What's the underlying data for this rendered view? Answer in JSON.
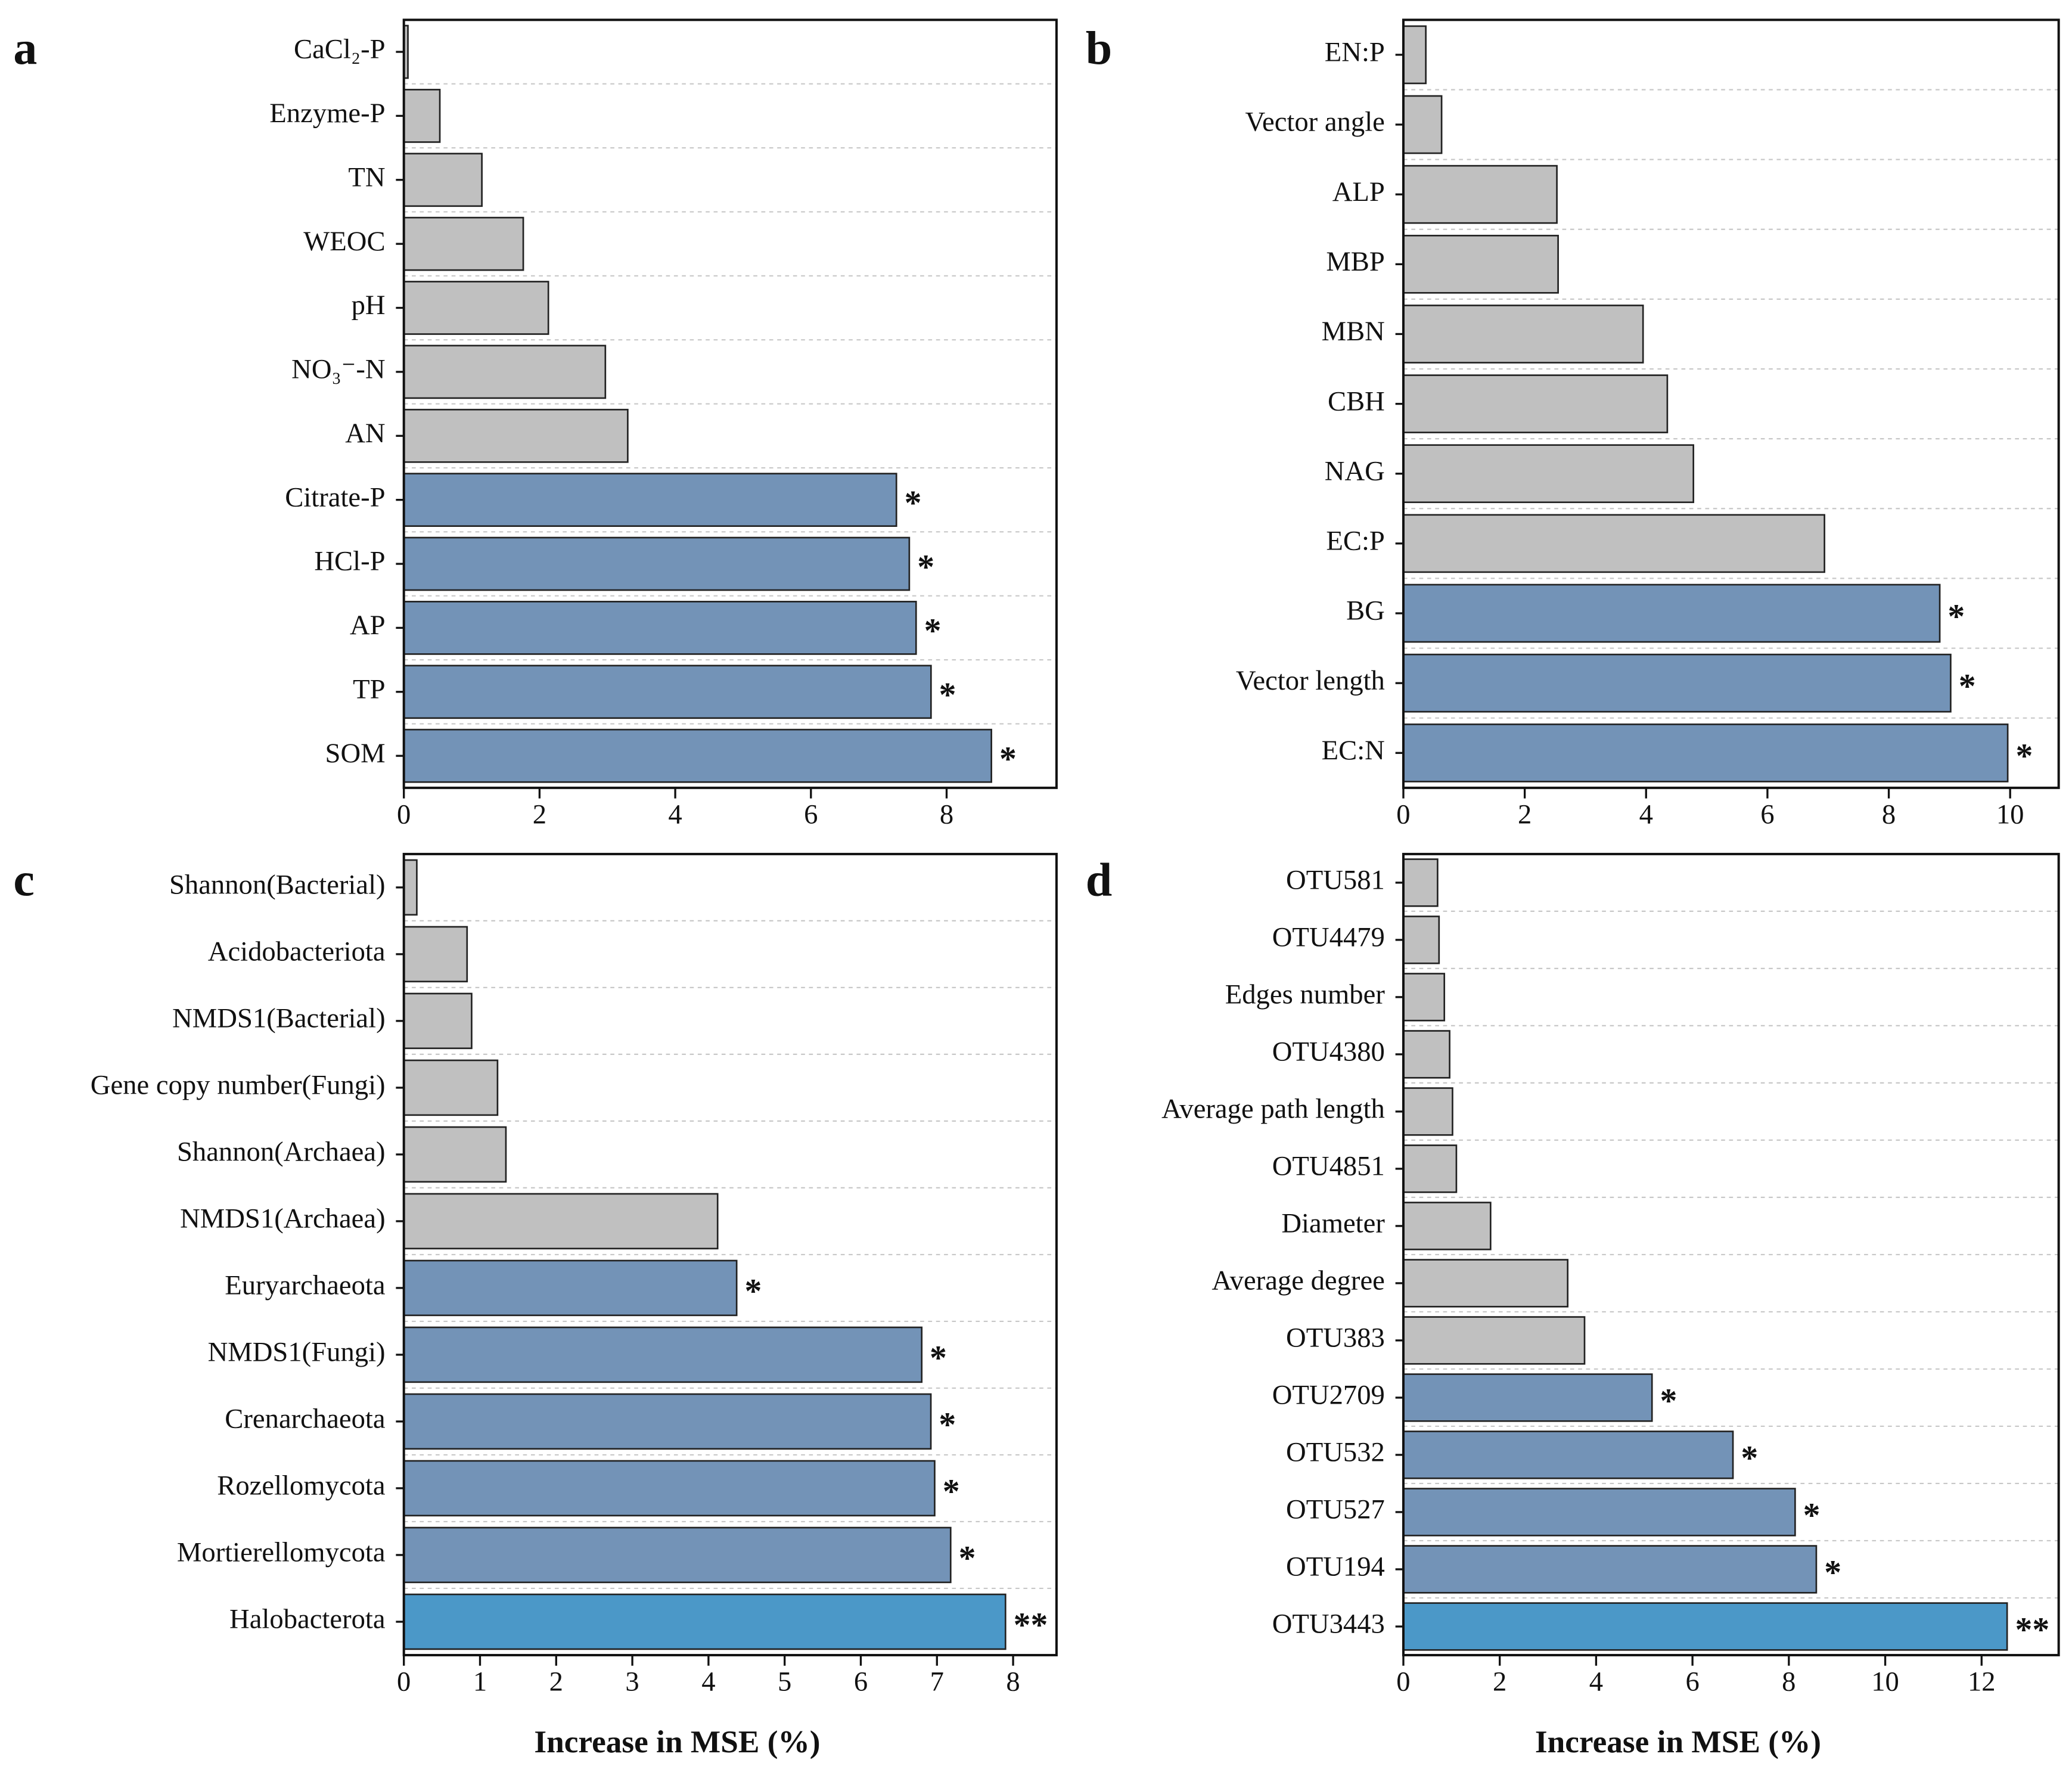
{
  "chart_data": [
    {
      "type": "bar",
      "panel_label": "a",
      "orientation": "horizontal",
      "grid": true,
      "categories": [
        "CaCl₂-P",
        "Enzyme-P",
        "TN",
        "WEOC",
        "pH",
        "NO₃⁻-N",
        "AN",
        "Citrate-P",
        "HCl-P",
        "AP",
        "TP",
        "SOM"
      ],
      "values": [
        0.06,
        0.53,
        1.15,
        1.76,
        2.13,
        2.97,
        3.3,
        7.26,
        7.45,
        7.55,
        7.77,
        8.66
      ],
      "colors": [
        "#c0c0c0",
        "#c0c0c0",
        "#c0c0c0",
        "#c0c0c0",
        "#c0c0c0",
        "#c0c0c0",
        "#c0c0c0",
        "#7393b7",
        "#7393b7",
        "#7393b7",
        "#7393b7",
        "#7393b7"
      ],
      "annotations": [
        null,
        null,
        null,
        null,
        null,
        null,
        null,
        "*",
        "*",
        "*",
        "*",
        "*"
      ],
      "xlim": [
        0,
        9.62
      ],
      "xticks": [
        0,
        2,
        4,
        6,
        8
      ]
    },
    {
      "type": "bar",
      "panel_label": "b",
      "orientation": "horizontal",
      "grid": true,
      "categories": [
        "EN:P",
        "Vector angle",
        "ALP",
        "MBP",
        "MBN",
        "CBH",
        "NAG",
        "EC:P",
        "BG",
        "Vector length",
        "EC:N"
      ],
      "values": [
        0.37,
        0.63,
        2.53,
        2.55,
        3.95,
        4.35,
        4.78,
        6.94,
        8.84,
        9.02,
        9.96
      ],
      "colors": [
        "#c0c0c0",
        "#c0c0c0",
        "#c0c0c0",
        "#c0c0c0",
        "#c0c0c0",
        "#c0c0c0",
        "#c0c0c0",
        "#c0c0c0",
        "#7393b7",
        "#7393b7",
        "#7393b7"
      ],
      "annotations": [
        null,
        null,
        null,
        null,
        null,
        null,
        null,
        null,
        "*",
        "*",
        "*"
      ],
      "xlim": [
        0,
        10.8
      ],
      "xticks": [
        0,
        2,
        4,
        6,
        8,
        10
      ]
    },
    {
      "type": "bar",
      "panel_label": "c",
      "orientation": "horizontal",
      "grid": true,
      "categories": [
        "Shannon(Bacterial)",
        "Acidobacteriota",
        "NMDS1(Bacterial)",
        "Gene copy number(Fungi)",
        "Shannon(Archaea)",
        "NMDS1(Archaea)",
        "Euryarchaeota",
        "NMDS1(Fungi)",
        "Crenarchaeota",
        "Rozellomycota",
        "Mortierellomycota",
        "Halobacterota"
      ],
      "values": [
        0.17,
        0.83,
        0.89,
        1.23,
        1.34,
        4.12,
        4.37,
        6.8,
        6.92,
        6.97,
        7.18,
        7.9
      ],
      "colors": [
        "#c0c0c0",
        "#c0c0c0",
        "#c0c0c0",
        "#c0c0c0",
        "#c0c0c0",
        "#c0c0c0",
        "#7393b7",
        "#7393b7",
        "#7393b7",
        "#7393b7",
        "#7393b7",
        "#4b98c8"
      ],
      "annotations": [
        null,
        null,
        null,
        null,
        null,
        null,
        "*",
        "*",
        "*",
        "*",
        "*",
        "**"
      ],
      "xlim": [
        0,
        8.57
      ],
      "xticks": [
        0,
        1,
        2,
        3,
        4,
        5,
        6,
        7,
        8
      ],
      "xlabel": "Increase in MSE (%)"
    },
    {
      "type": "bar",
      "panel_label": "d",
      "orientation": "horizontal",
      "grid": true,
      "categories": [
        "OTU581",
        "OTU4479",
        "Edges number",
        "OTU4380",
        "Average path length",
        "OTU4851",
        "Diameter",
        "Average degree",
        "OTU383",
        "OTU2709",
        "OTU532",
        "OTU527",
        "OTU194",
        "OTU3443"
      ],
      "values": [
        0.71,
        0.74,
        0.85,
        0.96,
        1.02,
        1.1,
        1.81,
        3.41,
        3.76,
        5.16,
        6.84,
        8.13,
        8.57,
        12.53
      ],
      "colors": [
        "#c0c0c0",
        "#c0c0c0",
        "#c0c0c0",
        "#c0c0c0",
        "#c0c0c0",
        "#c0c0c0",
        "#c0c0c0",
        "#c0c0c0",
        "#c0c0c0",
        "#7393b7",
        "#7393b7",
        "#7393b7",
        "#7393b7",
        "#4b98c8"
      ],
      "annotations": [
        null,
        null,
        null,
        null,
        null,
        null,
        null,
        null,
        null,
        "*",
        "*",
        "*",
        "*",
        "**"
      ],
      "xlim": [
        0,
        13.6
      ],
      "xticks": [
        0,
        2,
        4,
        6,
        8,
        10,
        12
      ],
      "xlabel": "Increase in MSE (%)"
    }
  ]
}
